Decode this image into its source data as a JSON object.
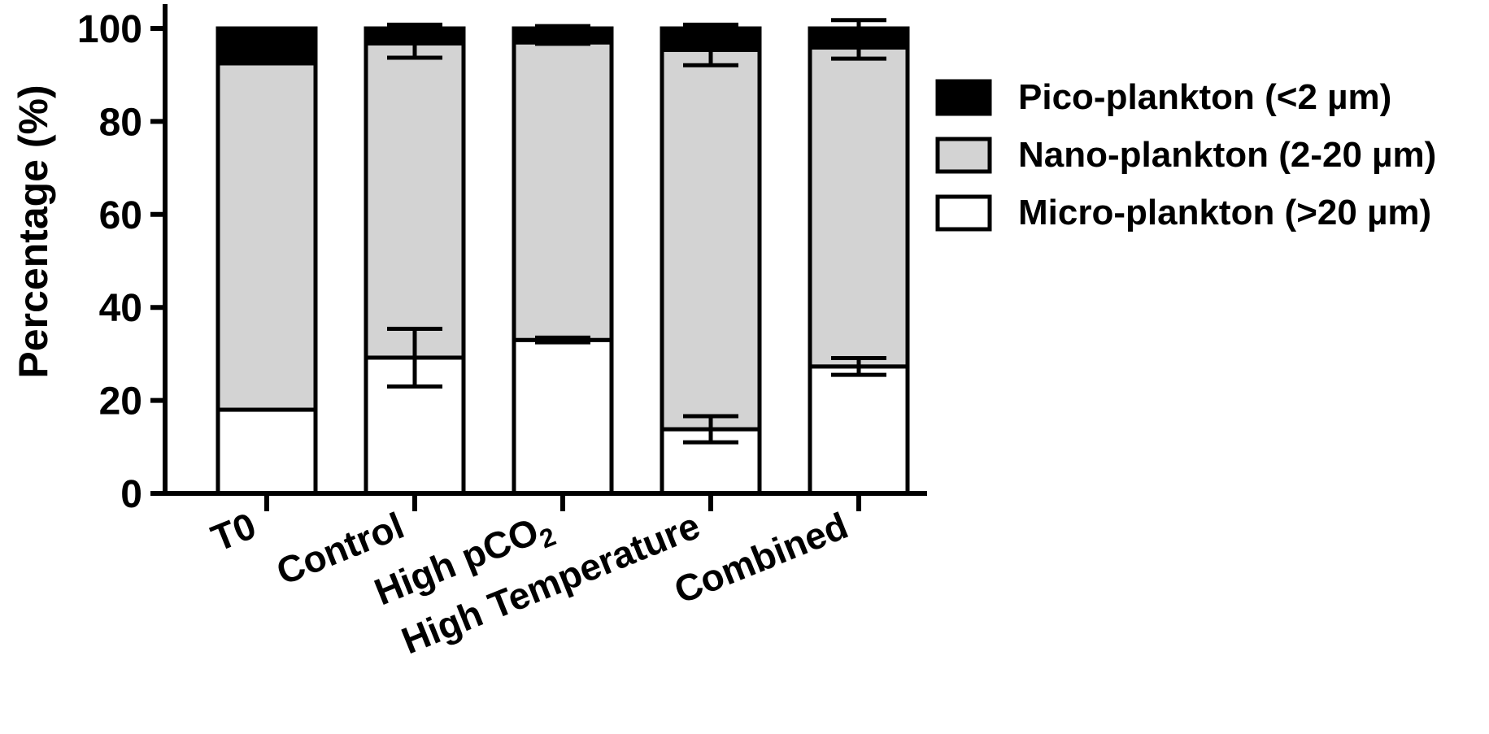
{
  "chart_data": {
    "type": "bar",
    "stacked": true,
    "categories": [
      "T0",
      "Control",
      "High pCO",
      "High Temperature",
      "Combined"
    ],
    "category_subscripts": [
      "",
      "",
      "2",
      "",
      ""
    ],
    "ylabel": "Percentage (%)",
    "xlabel": "",
    "ylim": [
      0,
      100
    ],
    "yticks": [
      0,
      20,
      40,
      60,
      80,
      100
    ],
    "legend_position": "right",
    "series": [
      {
        "name": "Micro-plankton (>20 µm)",
        "color": "#ffffff",
        "values": [
          18,
          29.2,
          33,
          13.8,
          27.3
        ],
        "errors": [
          0,
          6.2,
          0.5,
          2.8,
          1.8
        ]
      },
      {
        "name": "Nano-plankton (2-20 µm)",
        "color": "#d3d3d3",
        "values": [
          74.5,
          67.6,
          64,
          81.6,
          68.6
        ],
        "errors": [
          0,
          3.1,
          0.3,
          3.3,
          2.4
        ]
      },
      {
        "name": "Pico-plankton (<2 µm)",
        "color": "#000000",
        "values": [
          7.5,
          3.2,
          3,
          4.6,
          4.1
        ],
        "errors": [
          0,
          0.8,
          0.5,
          0.8,
          1.8
        ]
      }
    ],
    "legend_order": [
      2,
      1,
      0
    ]
  }
}
